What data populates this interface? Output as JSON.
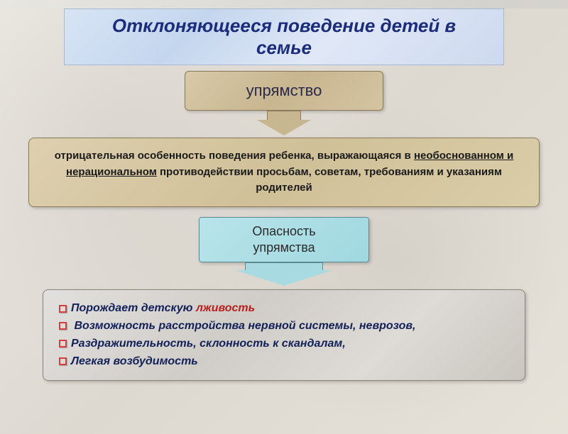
{
  "title": {
    "line1": "Отклоняющееся поведение детей в",
    "line2": "семье",
    "bg_gradient": [
      "#d8e4f5",
      "#c4d6ee",
      "#e0e8f7",
      "#cdd9ef"
    ],
    "text_color": "#1a2c7a",
    "font_size": 26
  },
  "stubbornness": {
    "label": "упрямство",
    "bg_gradient": [
      "#d8c9a8",
      "#c8b690",
      "#d4c4a0"
    ],
    "border_color": "#8a7a58",
    "text_color": "#2a2a4a",
    "font_size": 22
  },
  "arrow1": {
    "color": "#c8b690",
    "border_color": "#8a7a58"
  },
  "definition": {
    "prefix": "отрицательная особенность поведения ребенка, выражающаяся в ",
    "underlined": "необоснованном и нерациональном",
    "suffix": " противодействии просьбам, советам, требованиям и указаниям родителей",
    "bg_gradient": [
      "#ded0b0",
      "#d0c098",
      "#dacda8"
    ],
    "text_color": "#1a1a1a",
    "font_size": 15
  },
  "danger": {
    "line1": "Опасность",
    "line2": "упрямства",
    "bg_gradient": [
      "#b8e4ea",
      "#a0d8e0"
    ],
    "border_color": "#5a8a95",
    "font_size": 18
  },
  "arrow2": {
    "color": "#a8dae2",
    "border_color": "#5a8a95"
  },
  "effects": {
    "bg_gradient": [
      "#e2e0de",
      "#d0cdc8",
      "#dedad5",
      "#cac6c0"
    ],
    "border_color": "#888478",
    "text_color": "#122058",
    "highlight_color": "#b82020",
    "bullet_border": "#d04040",
    "font_size": 16,
    "items": [
      {
        "prefix": "Порождает детскую ",
        "highlight": "лживость",
        "suffix": ""
      },
      {
        "prefix": " Возможность расстройства нервной системы, неврозов,",
        "highlight": "",
        "suffix": ""
      },
      {
        "prefix": "Раздражительность, склонность к скандалам,",
        "highlight": "",
        "suffix": ""
      },
      {
        "prefix": "Легкая возбудимость",
        "highlight": "",
        "suffix": ""
      }
    ]
  }
}
